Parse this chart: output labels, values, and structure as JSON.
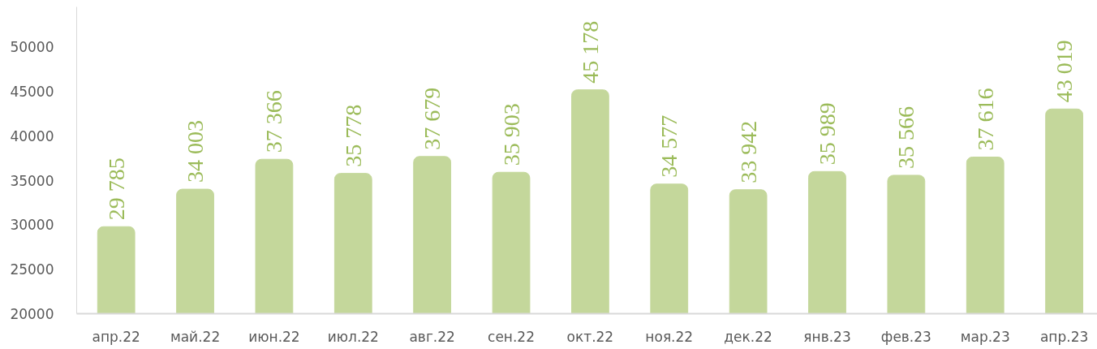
{
  "chart_data": {
    "type": "bar",
    "categories": [
      "апр.22",
      "май.22",
      "июн.22",
      "июл.22",
      "авг.22",
      "сен.22",
      "окт.22",
      "ноя.22",
      "дек.22",
      "янв.23",
      "фев.23",
      "мар.23",
      "апр.23"
    ],
    "values": [
      29785,
      34003,
      37366,
      35778,
      37679,
      35903,
      45178,
      34577,
      33942,
      35989,
      35566,
      37616,
      43019
    ],
    "value_labels": [
      "29 785",
      "34 003",
      "37 366",
      "35 778",
      "37 679",
      "35 903",
      "45 178",
      "34 577",
      "33 942",
      "35 989",
      "35 566",
      "37 616",
      "43 019"
    ],
    "color": "#c4d79b",
    "ylim": [
      20000,
      54500
    ],
    "yticks": [
      20000,
      25000,
      30000,
      35000,
      40000,
      45000,
      50000
    ]
  }
}
